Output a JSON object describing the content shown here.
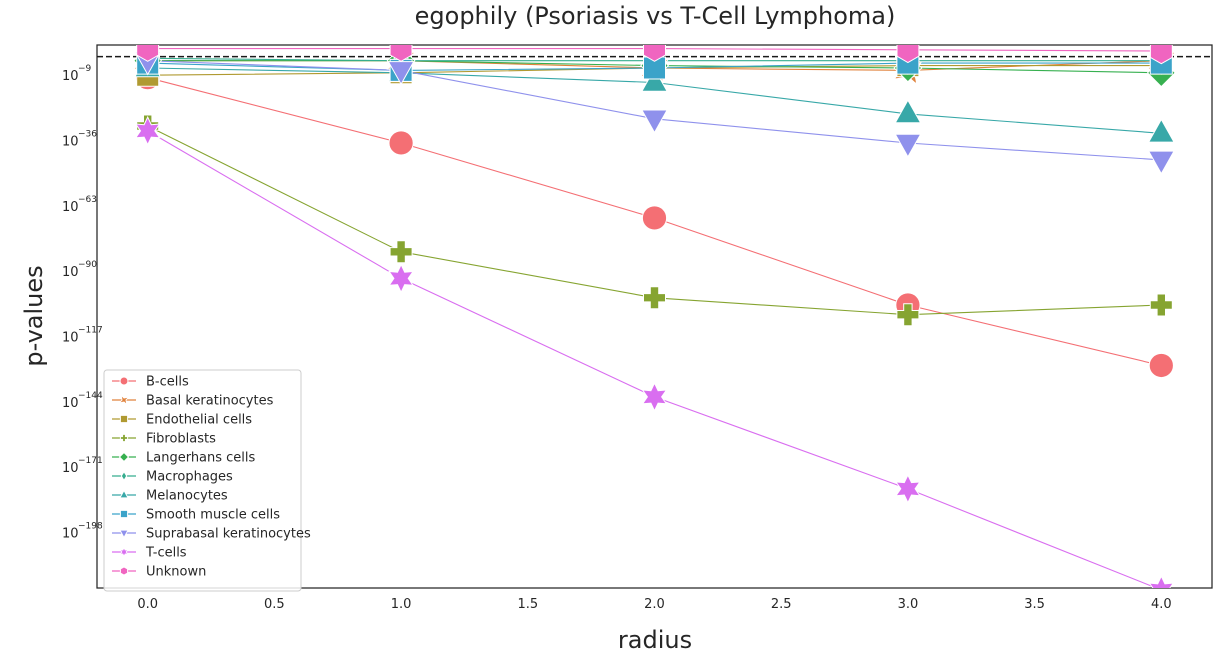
{
  "chart_data": {
    "type": "line",
    "title": "egophily (Psoriasis vs T-Cell Lymphoma)",
    "xlabel": "radius",
    "ylabel": "p-values",
    "x": [
      0,
      1,
      2,
      3,
      4
    ],
    "xlim": [
      -0.2,
      4.2
    ],
    "xticks": [
      "0.0",
      "0.5",
      "1.0",
      "1.5",
      "2.0",
      "2.5",
      "3.0",
      "3.5",
      "4.0"
    ],
    "ylog10": true,
    "ylim_log10": [
      -221,
      3.5
    ],
    "yticks": [
      {
        "base": "10",
        "exp": "−9",
        "log": -9
      },
      {
        "base": "10",
        "exp": "−36",
        "log": -36
      },
      {
        "base": "10",
        "exp": "−63",
        "log": -63
      },
      {
        "base": "10",
        "exp": "−90",
        "log": -90
      },
      {
        "base": "10",
        "exp": "−117",
        "log": -117
      },
      {
        "base": "10",
        "exp": "−144",
        "log": -144
      },
      {
        "base": "10",
        "exp": "−171",
        "log": -171
      },
      {
        "base": "10",
        "exp": "−198",
        "log": -198
      }
    ],
    "threshold_log10": -1.3,
    "grid": false,
    "legend_position": "lower-left",
    "series": [
      {
        "name": "B-cells",
        "color": "#f46f74",
        "marker": "circle",
        "log10_values": [
          -10,
          -37,
          -68,
          -104,
          -129
        ]
      },
      {
        "name": "Basal keratinocytes",
        "color": "#e0823c",
        "marker": "x",
        "log10_values": [
          -3,
          -3,
          -6,
          -7,
          -3
        ]
      },
      {
        "name": "Endothelial cells",
        "color": "#b09a31",
        "marker": "square",
        "log10_values": [
          -9,
          -8,
          -6,
          -5,
          -5
        ]
      },
      {
        "name": "Fibroblasts",
        "color": "#86a431",
        "marker": "plus",
        "log10_values": [
          -30,
          -82,
          -101,
          -108,
          -104
        ]
      },
      {
        "name": "Langerhans cells",
        "color": "#37b050",
        "marker": "diamond",
        "log10_values": [
          -3,
          -3,
          -5,
          -6,
          -8
        ]
      },
      {
        "name": "Macrophages",
        "color": "#36ad8f",
        "marker": "thin-diamond",
        "log10_values": [
          -2,
          -3,
          -3,
          -3,
          -3
        ]
      },
      {
        "name": "Melanocytes",
        "color": "#38a8a8",
        "marker": "triangle-up",
        "log10_values": [
          -6,
          -8,
          -12,
          -25,
          -33
        ]
      },
      {
        "name": "Smooth muscle cells",
        "color": "#3ba3c9",
        "marker": "square",
        "log10_values": [
          -4,
          -7,
          -6,
          -4,
          -4
        ]
      },
      {
        "name": "Suprabasal keratinocytes",
        "color": "#8f91ec",
        "marker": "triangle-down",
        "log10_values": [
          -3,
          -7,
          -27,
          -37,
          -44
        ]
      },
      {
        "name": "T-cells",
        "color": "#d96ef0",
        "marker": "star",
        "log10_values": [
          -32,
          -93,
          -142,
          -180,
          -226
        ]
      },
      {
        "name": "Unknown",
        "color": "#f065c0",
        "marker": "hexagon",
        "log10_values": [
          2,
          2,
          2,
          1.5,
          1
        ]
      }
    ]
  }
}
